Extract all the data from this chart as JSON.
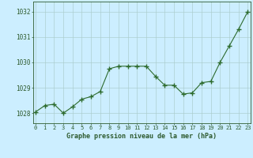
{
  "x": [
    0,
    1,
    2,
    3,
    4,
    5,
    6,
    7,
    8,
    9,
    10,
    11,
    12,
    13,
    14,
    15,
    16,
    17,
    18,
    19,
    20,
    21,
    22,
    23
  ],
  "y": [
    1028.05,
    1028.3,
    1028.35,
    1028.0,
    1028.25,
    1028.55,
    1028.65,
    1028.85,
    1029.75,
    1029.85,
    1029.85,
    1029.85,
    1029.85,
    1029.45,
    1029.1,
    1029.1,
    1028.75,
    1028.8,
    1029.2,
    1029.25,
    1030.0,
    1030.65,
    1031.3,
    1032.0
  ],
  "line_color": "#2d6b2d",
  "marker": "+",
  "marker_size": 4,
  "background_color": "#cceeff",
  "grid_color": "#aacccc",
  "xlabel": "Graphe pression niveau de la mer (hPa)",
  "xlabel_color": "#2d5a2d",
  "tick_color": "#2d5a2d",
  "ylim": [
    1027.6,
    1032.4
  ],
  "yticks": [
    1028,
    1029,
    1030,
    1031,
    1032
  ],
  "xticks": [
    0,
    1,
    2,
    3,
    4,
    5,
    6,
    7,
    8,
    9,
    10,
    11,
    12,
    13,
    14,
    15,
    16,
    17,
    18,
    19,
    20,
    21,
    22,
    23
  ],
  "spine_color": "#2d5a2d",
  "bottom_bar_color": "#2d5a2d",
  "bottom_bar_bg": "#6aaa6a"
}
